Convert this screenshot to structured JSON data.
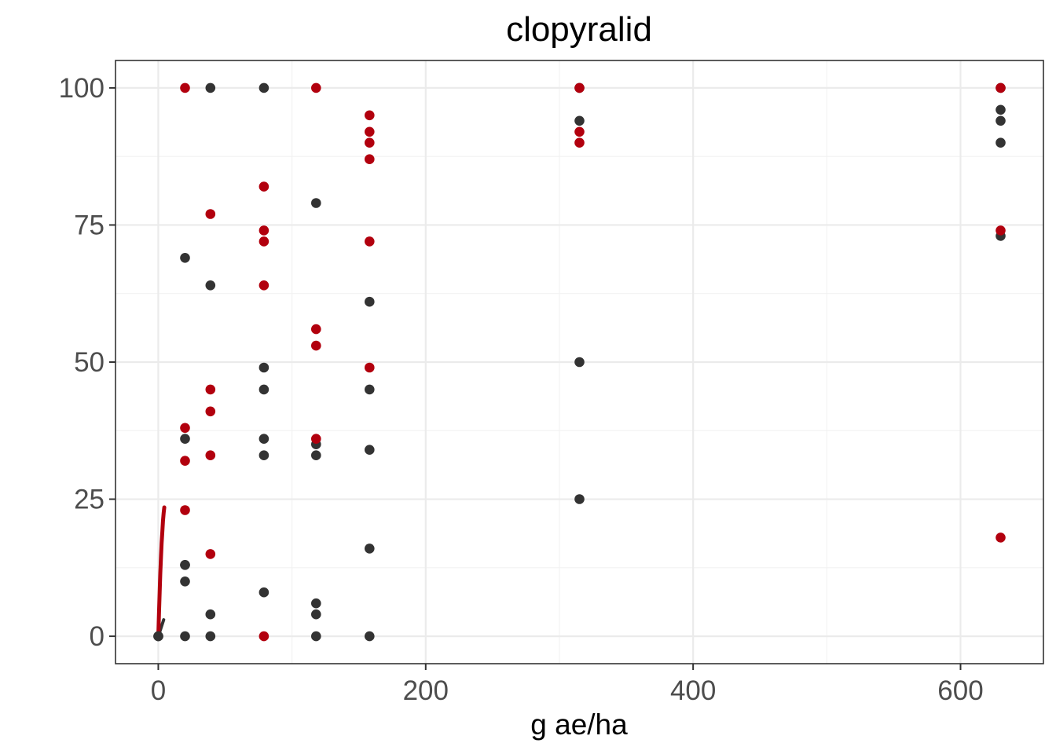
{
  "chart_data": {
    "type": "scatter",
    "title": "clopyralid",
    "xlabel": "g ae/ha",
    "ylabel": "",
    "xlim": [
      -32,
      662
    ],
    "ylim": [
      -5,
      105
    ],
    "xticks": [
      0,
      200,
      400,
      600
    ],
    "yticks": [
      0,
      25,
      50,
      75,
      100
    ],
    "xminor": [
      100,
      300,
      500
    ],
    "yminor": [
      12.5,
      37.5,
      62.5,
      87.5
    ],
    "grid": true,
    "colors": {
      "red": "#b2000e",
      "dark": "#333333"
    },
    "series": [
      {
        "color": "#333333",
        "points": [
          [
            0,
            0
          ],
          [
            0,
            0
          ],
          [
            20,
            69
          ],
          [
            20,
            36
          ],
          [
            20,
            13
          ],
          [
            20,
            13
          ],
          [
            20,
            10
          ],
          [
            20,
            0
          ],
          [
            39,
            100
          ],
          [
            39,
            64
          ],
          [
            39,
            4
          ],
          [
            39,
            0
          ],
          [
            79,
            100
          ],
          [
            79,
            49
          ],
          [
            79,
            45
          ],
          [
            79,
            36
          ],
          [
            79,
            33
          ],
          [
            79,
            8
          ],
          [
            118,
            79
          ],
          [
            118,
            35
          ],
          [
            118,
            33
          ],
          [
            118,
            6
          ],
          [
            118,
            4
          ],
          [
            118,
            0
          ],
          [
            158,
            61
          ],
          [
            158,
            45
          ],
          [
            158,
            34
          ],
          [
            158,
            16
          ],
          [
            158,
            0
          ],
          [
            315,
            100
          ],
          [
            315,
            94
          ],
          [
            315,
            50
          ],
          [
            315,
            25
          ],
          [
            630,
            100
          ],
          [
            630,
            96
          ],
          [
            630,
            94
          ],
          [
            630,
            90
          ],
          [
            630,
            73
          ]
        ],
        "curve": [
          [
            0,
            0
          ],
          [
            2,
            1.5
          ],
          [
            4,
            3
          ]
        ]
      },
      {
        "color": "#b2000e",
        "points": [
          [
            20,
            100
          ],
          [
            20,
            38
          ],
          [
            20,
            32
          ],
          [
            20,
            23
          ],
          [
            39,
            77
          ],
          [
            39,
            45
          ],
          [
            39,
            41
          ],
          [
            39,
            33
          ],
          [
            39,
            15
          ],
          [
            79,
            82
          ],
          [
            79,
            74
          ],
          [
            79,
            72
          ],
          [
            79,
            64
          ],
          [
            79,
            0
          ],
          [
            118,
            100
          ],
          [
            118,
            56
          ],
          [
            118,
            53
          ],
          [
            118,
            36
          ],
          [
            158,
            95
          ],
          [
            158,
            92
          ],
          [
            158,
            90
          ],
          [
            158,
            87
          ],
          [
            158,
            72
          ],
          [
            158,
            49
          ],
          [
            315,
            100
          ],
          [
            315,
            92
          ],
          [
            315,
            90
          ],
          [
            630,
            100
          ],
          [
            630,
            74
          ],
          [
            630,
            18
          ]
        ],
        "curve": [
          [
            0,
            0
          ],
          [
            0.5,
            4
          ],
          [
            1,
            8
          ],
          [
            1.5,
            11.5
          ],
          [
            2,
            14.5
          ],
          [
            2.5,
            17
          ],
          [
            3,
            19
          ],
          [
            3.5,
            21
          ],
          [
            4,
            22.5
          ],
          [
            4.5,
            23.5
          ]
        ]
      }
    ]
  }
}
